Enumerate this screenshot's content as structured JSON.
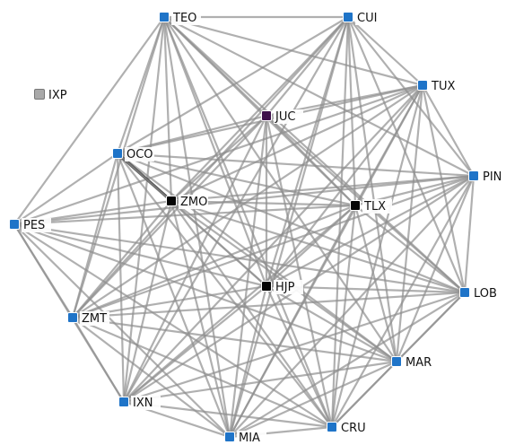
{
  "palette": {
    "edge": "#8f8f8f",
    "edge_dark": "#3a3a3a",
    "node_blue": "#1f74c8",
    "node_black": "#050505",
    "node_purple": "#3d0f4a",
    "node_gray": "#a9a9a9"
  },
  "nodes": [
    {
      "id": "TEO",
      "label": "TEO",
      "color": "blue"
    },
    {
      "id": "CUI",
      "label": "CUI",
      "color": "blue"
    },
    {
      "id": "TUX",
      "label": "TUX",
      "color": "blue"
    },
    {
      "id": "PIN",
      "label": "PIN",
      "color": "blue"
    },
    {
      "id": "LOB",
      "label": "LOB",
      "color": "blue"
    },
    {
      "id": "MAR",
      "label": "MAR",
      "color": "blue"
    },
    {
      "id": "CRU",
      "label": "CRU",
      "color": "blue"
    },
    {
      "id": "MIA",
      "label": "MIA",
      "color": "blue"
    },
    {
      "id": "IXN",
      "label": "IXN",
      "color": "blue"
    },
    {
      "id": "ZMT",
      "label": "ZMT",
      "color": "blue"
    },
    {
      "id": "PES",
      "label": "PES",
      "color": "blue"
    },
    {
      "id": "OCO",
      "label": "OCO",
      "color": "blue"
    },
    {
      "id": "JUC",
      "label": "JUC",
      "color": "purple"
    },
    {
      "id": "ZMO",
      "label": "ZMO",
      "color": "black"
    },
    {
      "id": "TLX",
      "label": "TLX",
      "color": "black"
    },
    {
      "id": "HJP",
      "label": "HJP",
      "color": "black"
    },
    {
      "id": "IXP",
      "label": "IXP",
      "color": "gray"
    }
  ],
  "edges": [
    [
      "TEO",
      "CUI"
    ],
    [
      "TEO",
      "TUX"
    ],
    [
      "TEO",
      "PIN"
    ],
    [
      "TEO",
      "LOB"
    ],
    [
      "TEO",
      "MAR"
    ],
    [
      "TEO",
      "CRU"
    ],
    [
      "TEO",
      "MIA"
    ],
    [
      "TEO",
      "IXN"
    ],
    [
      "TEO",
      "ZMT"
    ],
    [
      "TEO",
      "PES"
    ],
    [
      "TEO",
      "OCO"
    ],
    [
      "TEO",
      "JUC"
    ],
    [
      "TEO",
      "ZMO"
    ],
    [
      "TEO",
      "TLX"
    ],
    [
      "TEO",
      "HJP"
    ],
    [
      "CUI",
      "TUX"
    ],
    [
      "CUI",
      "PIN"
    ],
    [
      "CUI",
      "LOB"
    ],
    [
      "CUI",
      "MAR"
    ],
    [
      "CUI",
      "CRU"
    ],
    [
      "CUI",
      "MIA"
    ],
    [
      "CUI",
      "IXN"
    ],
    [
      "CUI",
      "ZMT"
    ],
    [
      "CUI",
      "OCO"
    ],
    [
      "CUI",
      "JUC"
    ],
    [
      "CUI",
      "ZMO"
    ],
    [
      "CUI",
      "TLX"
    ],
    [
      "CUI",
      "HJP"
    ],
    [
      "TUX",
      "PIN"
    ],
    [
      "TUX",
      "LOB"
    ],
    [
      "TUX",
      "MAR"
    ],
    [
      "TUX",
      "CRU"
    ],
    [
      "TUX",
      "MIA"
    ],
    [
      "TUX",
      "IXN"
    ],
    [
      "TUX",
      "ZMT"
    ],
    [
      "TUX",
      "PES"
    ],
    [
      "TUX",
      "OCO"
    ],
    [
      "TUX",
      "JUC"
    ],
    [
      "TUX",
      "ZMO"
    ],
    [
      "TUX",
      "TLX"
    ],
    [
      "TUX",
      "HJP"
    ],
    [
      "PIN",
      "LOB"
    ],
    [
      "PIN",
      "MAR"
    ],
    [
      "PIN",
      "CRU"
    ],
    [
      "PIN",
      "MIA"
    ],
    [
      "PIN",
      "IXN"
    ],
    [
      "PIN",
      "ZMT"
    ],
    [
      "PIN",
      "PES"
    ],
    [
      "PIN",
      "OCO"
    ],
    [
      "PIN",
      "ZMO"
    ],
    [
      "PIN",
      "TLX"
    ],
    [
      "PIN",
      "HJP"
    ],
    [
      "LOB",
      "MAR"
    ],
    [
      "LOB",
      "CRU"
    ],
    [
      "LOB",
      "MIA"
    ],
    [
      "LOB",
      "IXN"
    ],
    [
      "LOB",
      "ZMT"
    ],
    [
      "LOB",
      "PES"
    ],
    [
      "LOB",
      "OCO"
    ],
    [
      "LOB",
      "JUC"
    ],
    [
      "LOB",
      "ZMO"
    ],
    [
      "LOB",
      "TLX"
    ],
    [
      "LOB",
      "HJP"
    ],
    [
      "MAR",
      "CRU"
    ],
    [
      "MAR",
      "MIA"
    ],
    [
      "MAR",
      "IXN"
    ],
    [
      "MAR",
      "ZMT"
    ],
    [
      "MAR",
      "PES"
    ],
    [
      "MAR",
      "OCO"
    ],
    [
      "MAR",
      "ZMO"
    ],
    [
      "MAR",
      "TLX"
    ],
    [
      "MAR",
      "HJP"
    ],
    [
      "CRU",
      "MIA"
    ],
    [
      "CRU",
      "IXN"
    ],
    [
      "CRU",
      "ZMT"
    ],
    [
      "CRU",
      "PES"
    ],
    [
      "CRU",
      "OCO"
    ],
    [
      "CRU",
      "JUC"
    ],
    [
      "CRU",
      "ZMO"
    ],
    [
      "CRU",
      "TLX"
    ],
    [
      "CRU",
      "HJP"
    ],
    [
      "MIA",
      "IXN"
    ],
    [
      "MIA",
      "ZMT"
    ],
    [
      "MIA",
      "PES"
    ],
    [
      "MIA",
      "OCO"
    ],
    [
      "MIA",
      "JUC"
    ],
    [
      "MIA",
      "ZMO"
    ],
    [
      "MIA",
      "TLX"
    ],
    [
      "MIA",
      "HJP"
    ],
    [
      "IXN",
      "ZMT"
    ],
    [
      "IXN",
      "PES"
    ],
    [
      "IXN",
      "OCO"
    ],
    [
      "IXN",
      "JUC"
    ],
    [
      "IXN",
      "ZMO"
    ],
    [
      "IXN",
      "TLX"
    ],
    [
      "IXN",
      "HJP"
    ],
    [
      "ZMT",
      "PES"
    ],
    [
      "ZMT",
      "OCO"
    ],
    [
      "ZMT",
      "JUC"
    ],
    [
      "ZMT",
      "ZMO"
    ],
    [
      "ZMT",
      "TLX"
    ],
    [
      "ZMT",
      "HJP"
    ],
    [
      "PES",
      "OCO"
    ],
    [
      "PES",
      "ZMO"
    ],
    [
      "PES",
      "TLX"
    ],
    [
      "PES",
      "HJP"
    ],
    [
      "OCO",
      "JUC"
    ],
    [
      "OCO",
      "ZMO",
      "dark"
    ],
    [
      "OCO",
      "TLX"
    ],
    [
      "OCO",
      "HJP"
    ],
    [
      "JUC",
      "ZMO"
    ],
    [
      "JUC",
      "TLX"
    ],
    [
      "JUC",
      "HJP"
    ],
    [
      "ZMO",
      "TLX"
    ],
    [
      "ZMO",
      "HJP"
    ],
    [
      "TLX",
      "HJP"
    ]
  ]
}
